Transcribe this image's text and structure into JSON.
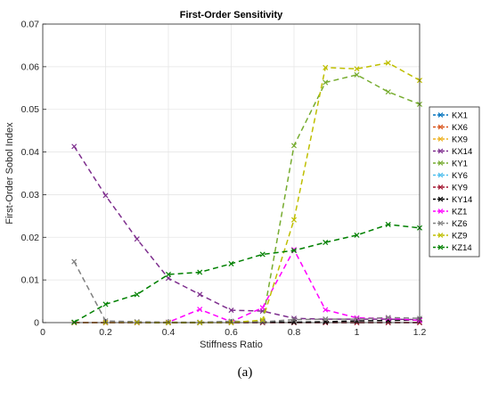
{
  "caption": "(a)",
  "chart_data": {
    "type": "line",
    "title": "First-Order Sensitivity",
    "xlabel": "Stiffness Ratio",
    "ylabel": "First-Order Sobol Index",
    "xlim": [
      0,
      1.2
    ],
    "ylim": [
      0,
      0.07
    ],
    "xticks": [
      "0",
      "0.2",
      "0.4",
      "0.6",
      "0.8",
      "1",
      "1.2"
    ],
    "yticks": [
      "0",
      "0.01",
      "0.02",
      "0.03",
      "0.04",
      "0.05",
      "0.06",
      "0.07"
    ],
    "grid": true,
    "legend_position": "right",
    "marker": "x",
    "line_style": "dashed",
    "x": [
      0.1,
      0.2,
      0.3,
      0.4,
      0.5,
      0.6,
      0.7,
      0.8,
      0.9,
      1.0,
      1.1,
      1.2
    ],
    "series": [
      {
        "name": "KX1",
        "color": "#0072BD",
        "values": [
          0,
          0,
          0,
          0,
          0,
          0,
          0,
          0,
          0,
          0,
          0,
          0
        ]
      },
      {
        "name": "KX6",
        "color": "#D95319",
        "values": [
          0,
          0,
          0,
          0,
          0,
          0,
          0,
          0,
          0,
          0,
          0,
          0
        ]
      },
      {
        "name": "KX9",
        "color": "#EDB120",
        "values": [
          0,
          0,
          0,
          0,
          0,
          0,
          0,
          0,
          0,
          0,
          0,
          0
        ]
      },
      {
        "name": "KX14",
        "color": "#7E2F8E",
        "values": [
          0.0413,
          0.0298,
          0.0196,
          0.0104,
          0.0066,
          0.0029,
          0.0027,
          0.001,
          0.0008,
          0.0008,
          0.0008,
          0.0007
        ]
      },
      {
        "name": "KY1",
        "color": "#77AC30",
        "values": [
          0,
          0,
          0,
          0,
          0,
          0,
          0.0004,
          0.0415,
          0.0563,
          0.0581,
          0.0541,
          0.0512
        ]
      },
      {
        "name": "KY6",
        "color": "#4DBEEE",
        "values": [
          0,
          0,
          0,
          0,
          0,
          0,
          0,
          0,
          0,
          0,
          0,
          0
        ]
      },
      {
        "name": "KY9",
        "color": "#A2142F",
        "values": [
          0,
          0,
          0,
          0,
          0,
          0,
          0,
          0,
          0,
          0,
          0,
          0
        ]
      },
      {
        "name": "KY14",
        "color": "#000000",
        "values": [
          0,
          0,
          0,
          0,
          0,
          0.0003,
          0.0002,
          0.0001,
          0.0002,
          0.0004,
          0.0005,
          0.0006
        ]
      },
      {
        "name": "KZ1",
        "color": "#FF00FF",
        "values": [
          0,
          0,
          0,
          0.0001,
          0.0031,
          0.0002,
          0.0035,
          0.0171,
          0.003,
          0.0011,
          0.001,
          0.0005
        ]
      },
      {
        "name": "KZ6",
        "color": "#808080",
        "values": [
          0.0143,
          0.0004,
          0.0002,
          0.0001,
          0.0001,
          0.0003,
          0.0002,
          0.0007,
          0.0008,
          0.0008,
          0.0012,
          0.001
        ]
      },
      {
        "name": "KZ9",
        "color": "#BFBF00",
        "values": [
          0,
          0,
          0,
          0,
          0,
          0,
          0.0006,
          0.0241,
          0.0598,
          0.0595,
          0.0609,
          0.0568
        ]
      },
      {
        "name": "KZ14",
        "color": "#008000",
        "values": [
          0.0001,
          0.0043,
          0.0066,
          0.0113,
          0.0118,
          0.0138,
          0.016,
          0.0169,
          0.0188,
          0.0205,
          0.023,
          0.0222
        ]
      }
    ]
  }
}
